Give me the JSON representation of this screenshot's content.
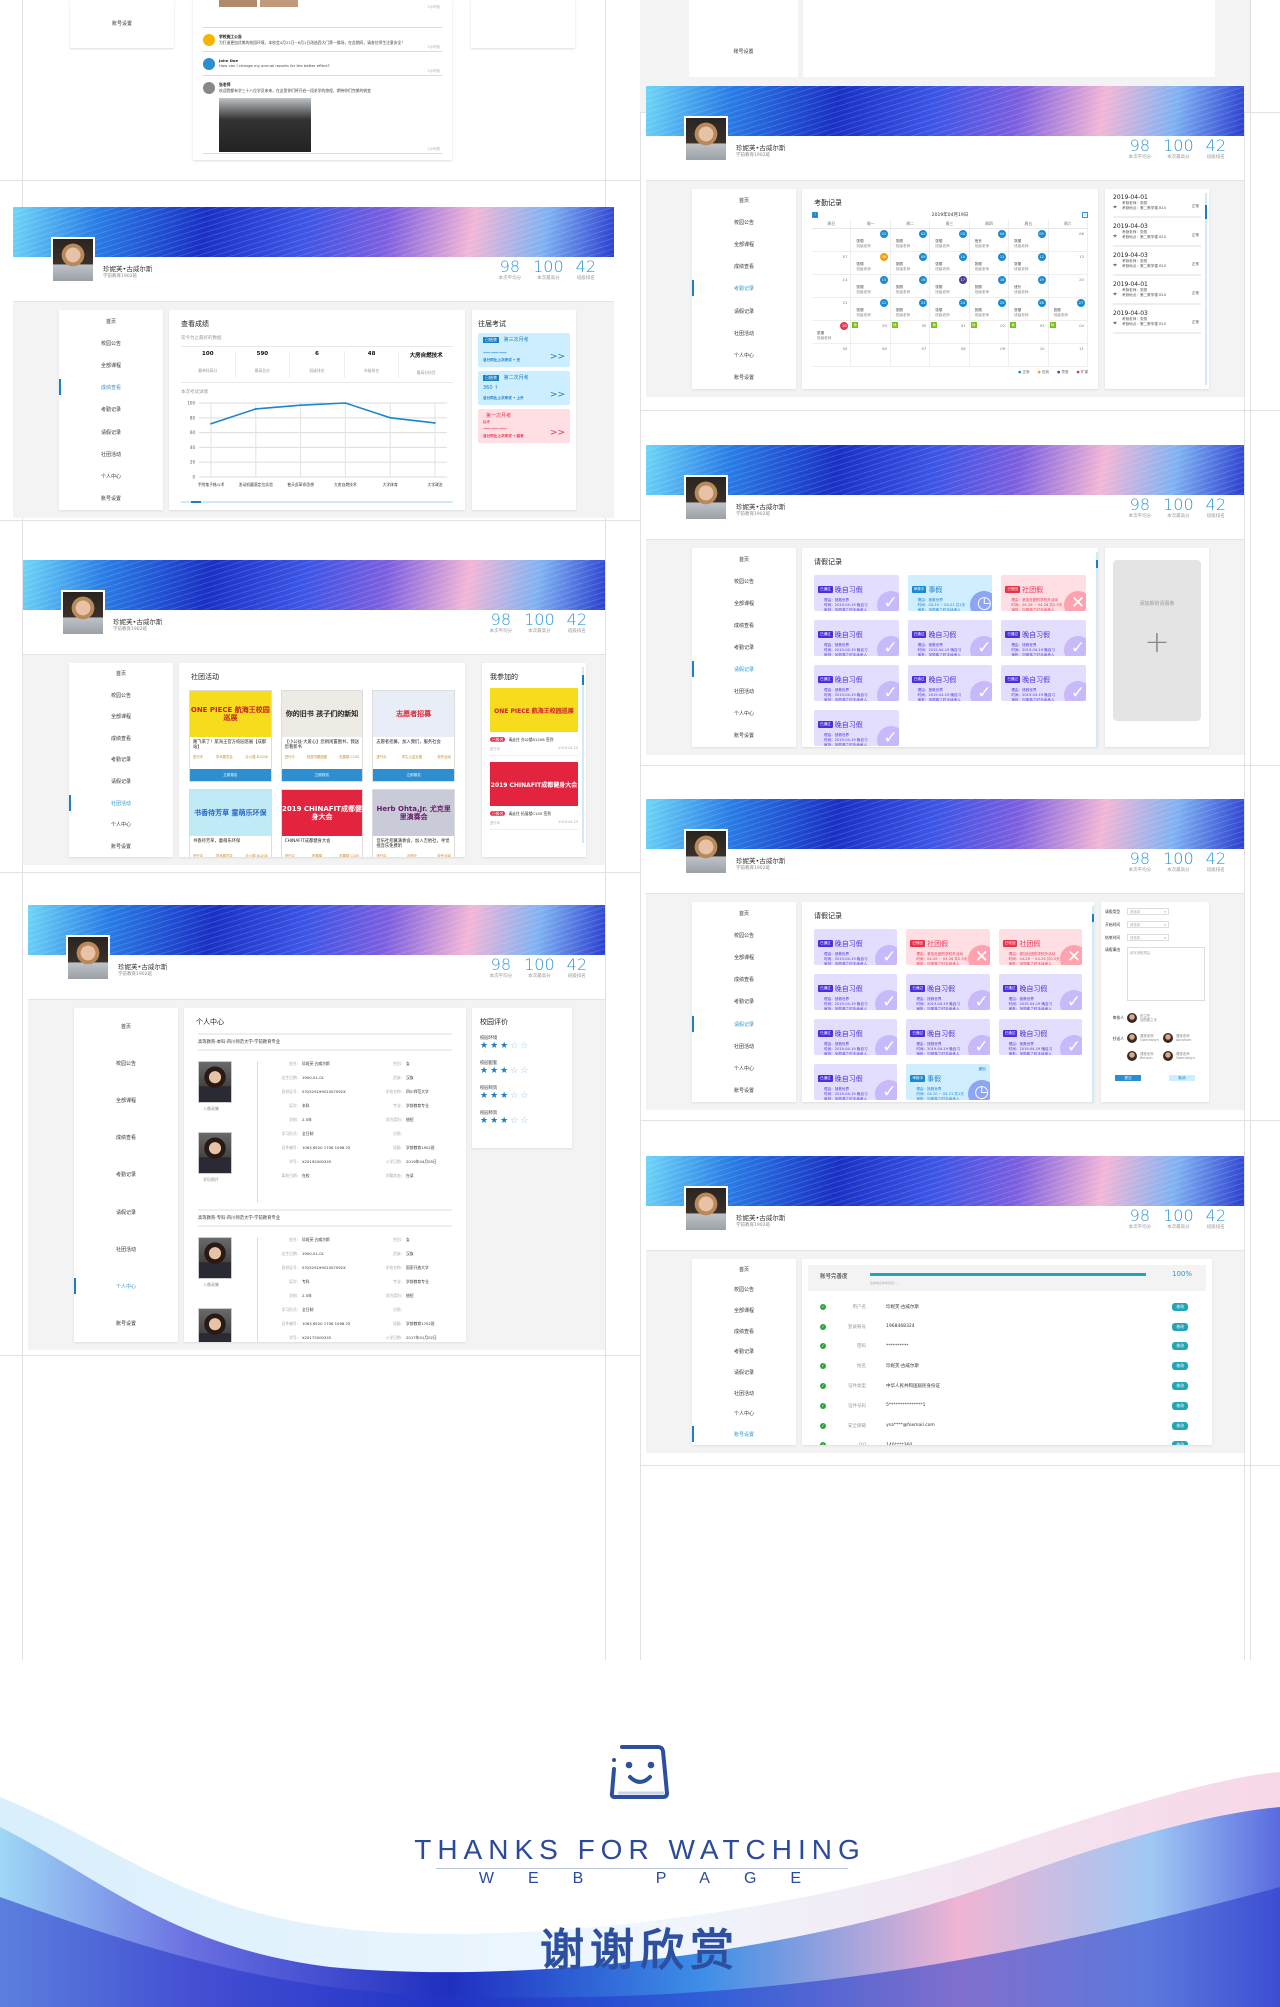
{
  "profile": {
    "name": "珍妮芙•古威尔斯",
    "class": "学前教育1902班",
    "stats": [
      {
        "value": "98",
        "label": "本次平均分"
      },
      {
        "value": "100",
        "label": "本次最高分"
      },
      {
        "value": "42",
        "label": "班级排名"
      }
    ]
  },
  "sidebar": {
    "items": [
      "首页",
      "校园公告",
      "全部课程",
      "成绩查看",
      "考勤记录",
      "请假记录",
      "社团活动",
      "个人中心",
      "账号设置"
    ]
  },
  "top_fragment": {
    "sidebar_label": "账号设置",
    "feed": [
      {
        "title": "学校施工公告",
        "text": "为打造更加优美的校园环境，本校会4月21日~6月1日改造西大门第一操场，在此期间，请各位师生注意安全！",
        "time": "2小时前"
      },
      {
        "title": "John Doe",
        "text": "How can I change my annual reports for the better effect?",
        "time": "2小时前"
      },
      {
        "title": "张老师",
        "text": "欢迎我都有学三十八位学员来来，在这里你们将开启一段求学的旅程，期待你们完美的蜕变",
        "time": "2小时前"
      }
    ],
    "first_time": "2小时前"
  },
  "grades": {
    "active_nav": "成绩查看",
    "title": "查看成绩",
    "subtitle": "迄今为止最好的数据",
    "summary": [
      {
        "value": "100",
        "label": "最单科高分"
      },
      {
        "value": "590",
        "label": "最高总分"
      },
      {
        "value": "6",
        "label": "班级排名"
      },
      {
        "value": "48",
        "label": "年级排名"
      },
      {
        "value": "大房自燃技术",
        "label": "最高分科目"
      }
    ],
    "detail_label": "本次考试详情",
    "past_title": "往届考试",
    "past": [
      {
        "tag": "已结束",
        "name": "第三次月考",
        "score": "———",
        "footer": "总分同比上次考试 • 无",
        "kind": "blue"
      },
      {
        "tag": "已结束",
        "name": "第二次月考",
        "score": "360 ↑",
        "footer": "总分同比上次考试 • 上升",
        "kind": "blue"
      },
      {
        "tag": "",
        "name": "第一次月考",
        "note": "缺考",
        "score": "———",
        "footer": "总分同比上次考试 • 缺考",
        "kind": "pink"
      }
    ],
    "arrow": ">>"
  },
  "chart_data": {
    "type": "line",
    "categories": [
      "手附鬼子格斗术",
      "发动机圆滚定位实验",
      "普天虎革命思想",
      "大房自燃技术",
      "大学体育",
      "大学政治"
    ],
    "values": [
      72,
      92,
      97,
      100,
      80,
      73
    ],
    "ylim": [
      0,
      100
    ],
    "yticks": [
      0,
      20,
      40,
      60,
      80,
      100
    ],
    "grid": true,
    "color": "#1a86cc"
  },
  "attendance": {
    "active_nav": "考勤记录",
    "title": "考勤记录",
    "month_label": "2019年04月19日",
    "prev": "‹",
    "next": "›",
    "weekdays": [
      "周日",
      "周一",
      "周二",
      "周三",
      "周四",
      "周五",
      "周六"
    ],
    "rows": [
      [
        {
          "d": ""
        },
        {
          "d": "01",
          "s": "normal",
          "t": "张丽",
          "r": "班级老师"
        },
        {
          "d": "02",
          "s": "normal",
          "t": "张丽",
          "r": "班级老师"
        },
        {
          "d": "03",
          "s": "normal",
          "t": "张丽",
          "r": "班级老师"
        },
        {
          "d": "04",
          "s": "normal",
          "t": "班长",
          "r": "班级老师"
        },
        {
          "d": "05",
          "s": "normal",
          "t": "张丽",
          "r": "班级老师"
        },
        {
          "d": "06"
        }
      ],
      [
        {
          "d": "07"
        },
        {
          "d": "08",
          "s": "late",
          "t": "张丽",
          "r": "班级老师"
        },
        {
          "d": "09",
          "s": "normal",
          "t": "张丽",
          "r": "班级老师"
        },
        {
          "d": "10",
          "s": "normal",
          "t": "张丽",
          "r": "班级老师"
        },
        {
          "d": "11",
          "s": "normal",
          "t": "张丽",
          "r": "班级老师"
        },
        {
          "d": "12",
          "s": "normal",
          "t": "张丽",
          "r": "班级老师"
        },
        {
          "d": "13"
        }
      ],
      [
        {
          "d": "14"
        },
        {
          "d": "15",
          "s": "normal",
          "t": "张丽",
          "r": "班级老师"
        },
        {
          "d": "16",
          "s": "normal",
          "t": "张丽",
          "r": "班级老师"
        },
        {
          "d": "17",
          "s": "early",
          "t": "张丽",
          "r": "班级老师"
        },
        {
          "d": "18",
          "s": "normal",
          "t": "张丽",
          "r": "班级老师"
        },
        {
          "d": "19",
          "s": "normal",
          "t": "班长",
          "r": "班级老师"
        },
        {
          "d": "20"
        }
      ],
      [
        {
          "d": "21"
        },
        {
          "d": "22",
          "s": "normal",
          "t": "张丽",
          "r": "班级老师"
        },
        {
          "d": "23",
          "s": "normal",
          "t": "张丽",
          "r": "班级老师"
        },
        {
          "d": "24",
          "s": "normal",
          "t": "张丽",
          "r": "班级老师"
        },
        {
          "d": "25",
          "s": "normal",
          "t": "张丽",
          "r": "班级老师"
        },
        {
          "d": "26",
          "s": "normal",
          "t": "张丽",
          "r": "班级老师"
        },
        {
          "d": "27",
          "s": "normal",
          "t": "张丽",
          "r": "班级老师"
        }
      ],
      [
        {
          "d": "28",
          "s": "absent",
          "t": "张丽",
          "r": "班级老师"
        },
        {
          "d": "29",
          "s": "rest",
          "b": "休"
        },
        {
          "d": "30",
          "s": "rest",
          "b": "休"
        },
        {
          "d": "01",
          "s": "rest",
          "b": "休"
        },
        {
          "d": "02",
          "s": "rest",
          "b": "休"
        },
        {
          "d": "03",
          "s": "rest",
          "b": "休"
        },
        {
          "d": "04",
          "s": "rest",
          "b": "休"
        }
      ],
      [
        {
          "d": "05"
        },
        {
          "d": "06"
        },
        {
          "d": "07"
        },
        {
          "d": "08"
        },
        {
          "d": "09"
        },
        {
          "d": "10"
        },
        {
          "d": "11"
        }
      ]
    ],
    "status_colors": {
      "normal": "#1a8ad0",
      "late": "#f39c12",
      "early": "#4a3f8f",
      "absent": "#e8334a",
      "rest": "#7cc01d"
    },
    "legend": [
      {
        "label": "正常",
        "color": "#1a8ad0"
      },
      {
        "label": "迟到",
        "color": "#f39c12"
      },
      {
        "label": "早退",
        "color": "#4a3f8f"
      },
      {
        "label": "旷课",
        "color": "#e8334a"
      }
    ],
    "records": [
      {
        "date": "2019-04-01",
        "teacher": "考勤老师：张丽",
        "place": "考勤地点：第二教学楼 B10",
        "status": "正常"
      },
      {
        "date": "2019-04-03",
        "teacher": "考勤老师：张丽",
        "place": "考勤地点：第二教学楼 B10",
        "status": "正常"
      },
      {
        "date": "2019-04-03",
        "teacher": "考勤老师：张丽",
        "place": "考勤地点：第二教学楼 B10",
        "status": "正常"
      },
      {
        "date": "2019-04-01",
        "teacher": "考勤老师：张丽",
        "place": "考勤地点：第二教学楼 B10",
        "status": "正常"
      },
      {
        "date": "2019-04-03",
        "teacher": "考勤老师：张丽",
        "place": "考勤地点：第二教学楼 B10",
        "status": "正常"
      }
    ]
  },
  "clubs": {
    "active_nav": "社团活动",
    "title": "社团活动",
    "button": "立即报名",
    "cards": [
      {
        "poster": "ONE PIECE 航海王校园巡展",
        "title": "路飞来了！航海王官方校园巡展【成都站】",
        "status": "进行中",
        "org": "学术委员会",
        "place": "办公楼 B1208",
        "bg": "#f6dc1c",
        "fg": "#c8202a"
      },
      {
        "poster": "你的旧书 孩子们的新知",
        "title": "【小公益·大爱心】您捐闲置图书，我送您看新书",
        "status": "进行中",
        "org": "校园书屋团团",
        "place": "拓展楼 C105",
        "bg": "#eeeae4",
        "fg": "#222"
      },
      {
        "poster": "志愿者招募",
        "title": "志愿者招募，加入我们，服务社会",
        "status": "进行中",
        "org": "学生公益社团",
        "place": "校外活动",
        "bg": "#e8edf8",
        "fg": "#d42a3a"
      },
      {
        "poster": "书香待芳草 童萌乐环保",
        "title": "书香待芳草，童萌乐环保",
        "status": "进行中",
        "org": "学术委员会",
        "place": "办公楼 B1208",
        "bg": "#bfeaf6",
        "fg": "#2a68c8"
      },
      {
        "poster": "2019 CHINAFIT成都健身大会",
        "title": "CHINAFIT成都健身大会",
        "status": "进行中",
        "org": "拓展楼",
        "place": "拓展楼 C105",
        "bg": "#e2243e",
        "fg": "#fff"
      },
      {
        "poster": "Herb Ohta,Jr. 尤克里里演奏会",
        "title": "音乐社招募演奏会，加入吉他社，寻觉摇音乐免费听",
        "status": "进行中",
        "org": "吉他社",
        "place": "校外活动",
        "bg": "#c9cbd8",
        "fg": "#6a1a6a"
      }
    ],
    "mine_title": "我参加的",
    "mine": [
      {
        "poster": "ONE PIECE 航海王校园巡展",
        "tag": "已报名",
        "text": "请走往 办公楼B1208 签到",
        "status": "进行中",
        "date": "2019-04-20",
        "bg": "#f6dc1c",
        "fg": "#c8202a"
      },
      {
        "poster": "2019 CHINAFIT成都健身大会",
        "tag": "已报名",
        "text": "请走往 拓展楼C105 签到",
        "status": "进行中",
        "date": "2019-04-25",
        "bg": "#e2243e",
        "fg": "#fff"
      }
    ]
  },
  "leave_labels": {
    "reason": "理由：",
    "time": "时间：",
    "approver": "审批："
  },
  "leave1": {
    "active_nav": "请假记录",
    "title": "请假记录",
    "add_label": "添加新的请假条",
    "add_icon": "+",
    "cards": [
      {
        "kind": "approved",
        "badge": "已通过",
        "type": "晚自习假",
        "reason": "拯救世界",
        "time": "2019-04-19 晚自习",
        "approver": "加丽弗之时手续承人"
      },
      {
        "kind": "pending",
        "badge": "审核中",
        "type": "事假",
        "reason": "拯救世界",
        "time": "04-20 ~ 04-21 共1天",
        "approver": "加丽弗之时手续承人"
      },
      {
        "kind": "rejected",
        "badge": "已驳回",
        "type": "社团假",
        "reason": "参加社团的学校外活动",
        "time": "04-26 ~ 04-26 共0.5天",
        "approver": "加丽弗之时手续承人"
      },
      {
        "kind": "approved",
        "badge": "已通过",
        "type": "晚自习假",
        "reason": "拯救世界",
        "time": "2019-04-19 晚自习",
        "approver": "加丽弗之时手续承人"
      },
      {
        "kind": "approved",
        "badge": "已通过",
        "type": "晚自习假",
        "reason": "拯救世界",
        "time": "2019-04-19 晚自习",
        "approver": "加丽弗之时手续承人"
      },
      {
        "kind": "approved",
        "badge": "已通过",
        "type": "晚自习假",
        "reason": "拯救世界",
        "time": "2019-04-19 晚自习",
        "approver": "加丽弗之时手续承人"
      },
      {
        "kind": "approved",
        "badge": "已通过",
        "type": "晚自习假",
        "reason": "拯救世界",
        "time": "2019-04-19 晚自习",
        "approver": "加丽弗之时手续承人"
      },
      {
        "kind": "approved",
        "badge": "已通过",
        "type": "晚自习假",
        "reason": "拯救世界",
        "time": "2019-04-19 晚自习",
        "approver": "加丽弗之时手续承人"
      },
      {
        "kind": "approved",
        "badge": "已通过",
        "type": "晚自习假",
        "reason": "拯救世界",
        "time": "2019-04-19 晚自习",
        "approver": "加丽弗之时手续承人"
      },
      {
        "kind": "approved",
        "badge": "已通过",
        "type": "晚自习假",
        "reason": "拯救世界",
        "time": "2019-04-19 晚自习",
        "approver": "加丽弗之时手续承人"
      }
    ]
  },
  "leave2": {
    "active_nav": "请假记录",
    "title": "请假记录",
    "cards": [
      {
        "kind": "approved",
        "badge": "已通过",
        "type": "晚自习假",
        "reason": "拯救世界",
        "time": "2019-04-19 晚自习",
        "approver": "加丽弗之时手续承人"
      },
      {
        "kind": "rejected",
        "badge": "已驳回",
        "type": "社团假",
        "reason": "参加社团的学校外活动",
        "time": "04-26 ~ 04-26 共0.5天",
        "approver": "加丽弗之时手续承人"
      },
      {
        "kind": "rejected",
        "badge": "已驳回",
        "type": "社团假",
        "reason": "参加社团的学校外活动",
        "time": "04-26 ~ 04-26 共0.5天",
        "approver": "加丽弗之时手续承人"
      },
      {
        "kind": "approved",
        "badge": "已通过",
        "type": "晚自习假",
        "reason": "拯救世界",
        "time": "2019-04-19 晚自习",
        "approver": "加丽弗之时手续承人"
      },
      {
        "kind": "approved",
        "badge": "已通过",
        "type": "晚自习假",
        "reason": "拯救世界",
        "time": "2019-04-19 晚自习",
        "approver": "加丽弗之时手续承人"
      },
      {
        "kind": "approved",
        "badge": "已通过",
        "type": "晚自习假",
        "reason": "拯救世界",
        "time": "2019-04-19 晚自习",
        "approver": "加丽弗之时手续承人"
      },
      {
        "kind": "approved",
        "badge": "已通过",
        "type": "晚自习假",
        "reason": "拯救世界",
        "time": "2019-04-19 晚自习",
        "approver": "加丽弗之时手续承人"
      },
      {
        "kind": "approved",
        "badge": "已通过",
        "type": "晚自习假",
        "reason": "拯救世界",
        "time": "2019-04-19 晚自习",
        "approver": "加丽弗之时手续承人"
      },
      {
        "kind": "approved",
        "badge": "已通过",
        "type": "晚自习假",
        "reason": "拯救世界",
        "time": "2019-04-19 晚自习",
        "approver": "加丽弗之时手续承人"
      },
      {
        "kind": "approved",
        "badge": "已通过",
        "type": "晚自习假",
        "reason": "拯救世界",
        "time": "2019-04-19 晚自习",
        "approver": "加丽弗之时手续承人"
      },
      {
        "kind": "pending",
        "badge": "审核中",
        "type": "事假",
        "reason": "拯救世界",
        "time": "04-20 ~ 04-21 共1天",
        "approver": "加丽弗之时手续承人",
        "withdraw": "撤回"
      }
    ],
    "form": {
      "type_label": "请假类型",
      "start_label": "开始时间",
      "end_label": "结束时间",
      "select_placeholder": "请选择",
      "reason_label": "请假事由",
      "reason_placeholder": "填写请假理由",
      "approver_label": "审核人",
      "approver": {
        "role": "班主任",
        "name": "加丽弗之手"
      },
      "cc_label": "抄送人",
      "cc": [
        {
          "role": "课堂老师",
          "name": "Gwendolyn"
        },
        {
          "role": "课堂老师",
          "name": "Abraham"
        },
        {
          "role": "课堂老师",
          "name": "Benson"
        },
        {
          "role": "课堂老师",
          "name": "Gwendolyn"
        }
      ],
      "submit": "提交",
      "cancel": "取消"
    }
  },
  "personal": {
    "active_nav": "个人中心",
    "title": "个人中心",
    "photo_labels": [
      "人像采集",
      "学历照片"
    ],
    "records": [
      {
        "heading": "高等教育-本科-四川师范大学-学前教育专业",
        "fields": [
          [
            "姓名:",
            "珍妮芙·古威尔斯",
            "性别:",
            "女"
          ],
          [
            "出生日期:",
            "1900-01-01",
            "民族:",
            "汉族"
          ],
          [
            "身份证号:",
            "53252919951007092X",
            "学校名称:",
            "四川师范大学"
          ],
          [
            "层次:",
            "本科",
            "专业:",
            "学前教育专业"
          ],
          [
            "学制:",
            "2.5年",
            "学历类别:",
            "统招"
          ],
          [
            "学习形式:",
            "全日制",
            "分院:",
            ""
          ],
          [
            "证件编号:",
            "1063 6520 1706 1098 25",
            "班级:",
            "学前教育1902班"
          ],
          [
            "学号:",
            "X20192000345",
            "入学日期:",
            "2019年04月05日"
          ],
          [
            "离校日期:",
            "在校",
            "学籍状态:",
            "在读"
          ]
        ]
      },
      {
        "heading": "高等教育-专科-四川师范大学-学前教育专业",
        "fields": [
          [
            "姓名:",
            "珍妮芙·古威尔斯",
            "性别:",
            "女"
          ],
          [
            "出生日期:",
            "1900-01-01",
            "民族:",
            "汉族"
          ],
          [
            "身份证号:",
            "53252919951007092X",
            "学校名称:",
            "国家开放大学"
          ],
          [
            "层次:",
            "专科",
            "专业:",
            "学前教育专业"
          ],
          [
            "学制:",
            "2.5年",
            "学历类别:",
            "统招"
          ],
          [
            "学习形式:",
            "全日制",
            "分院:",
            ""
          ],
          [
            "证件编号:",
            "1063 6520 1706 1098 25",
            "班级:",
            "学前教育1702班"
          ],
          [
            "学号:",
            "X20172000345",
            "入学日期:",
            "2017年01月02日"
          ],
          [
            "离校日期:",
            "2019年3月25日",
            "学籍状态:",
            "毕业"
          ]
        ]
      }
    ],
    "rating_title": "校园评价",
    "ratings": [
      {
        "label": "校园环境",
        "stars": 3,
        "max": 5
      },
      {
        "label": "校园配套",
        "stars": 3,
        "max": 5
      },
      {
        "label": "校园师资",
        "stars": 3,
        "max": 5
      },
      {
        "label": "校园师资",
        "stars": 3,
        "max": 5
      }
    ]
  },
  "account": {
    "active_nav": "账号设置",
    "completeness_label": "账号完善度",
    "completeness": 100,
    "completeness_text": "100%",
    "hint": "您的信息非常完善！！",
    "edit": "修改",
    "rows": [
      {
        "k": "用户名",
        "v": "珍妮芙·古威尔斯"
      },
      {
        "k": "登录账号",
        "v": "1968468324"
      },
      {
        "k": "密码",
        "v": "**********"
      },
      {
        "k": "姓名",
        "v": "珍妮芙·古威尔斯"
      },
      {
        "k": "证件类型",
        "v": "中华人民共和国居民身份证"
      },
      {
        "k": "证件号码",
        "v": "5***************1"
      },
      {
        "k": "安全邮箱",
        "v": "ysa****@foxmail.com"
      },
      {
        "k": "QQ",
        "v": "140****360"
      }
    ]
  },
  "ending": {
    "thanks": "THANKS FOR WATCHING",
    "web_page": "WEB PAGE",
    "chinese": "谢谢欣赏",
    "logo_icon": "smiley-bag-icon",
    "brand_color": "#2d4fa0"
  }
}
